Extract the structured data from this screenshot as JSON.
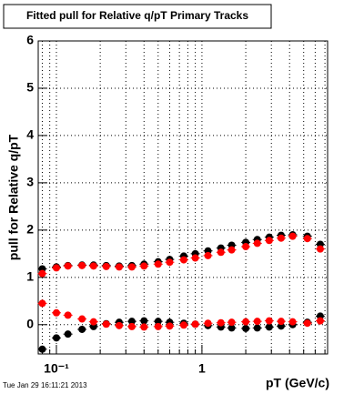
{
  "chart_data": {
    "type": "scatter",
    "title": "Fitted pull for Relative q/pT  Primary Tracks",
    "y_label": "pull for Relative q/pT",
    "x_label": "pT (GeV/c)",
    "timestamp": "Tue Jan 29 16:11:21 2013",
    "log_x": true,
    "grid": true,
    "xlim": [
      0.075,
      7.3
    ],
    "ylim": [
      -0.62,
      6
    ],
    "xticks": [
      {
        "value": 0.1,
        "label": "10⁻¹"
      },
      1
    ],
    "xminor": [
      0.08,
      0.09,
      0.2,
      0.3,
      0.4,
      0.5,
      0.6,
      0.7,
      0.8,
      0.9,
      2,
      3,
      4,
      5,
      6,
      7
    ],
    "yticks": [
      0,
      1,
      2,
      3,
      4,
      5,
      6
    ],
    "series": [
      {
        "color": "#000000",
        "x": [
          0.08,
          0.1,
          0.12,
          0.15,
          0.18,
          0.22,
          0.27,
          0.33,
          0.4,
          0.5,
          0.6,
          0.75,
          0.9,
          1.1,
          1.35,
          1.6,
          2.0,
          2.4,
          2.9,
          3.5,
          4.2,
          5.3,
          6.5
        ],
        "values": [
          1.18,
          1.22,
          1.25,
          1.26,
          1.26,
          1.25,
          1.24,
          1.25,
          1.28,
          1.33,
          1.38,
          1.45,
          1.5,
          1.56,
          1.62,
          1.68,
          1.74,
          1.8,
          1.85,
          1.89,
          1.9,
          1.87,
          1.7
        ]
      },
      {
        "color": "#000000",
        "x": [
          0.08,
          0.1,
          0.12,
          0.15,
          0.18,
          0.22,
          0.27,
          0.33,
          0.4,
          0.5,
          0.6,
          0.75,
          0.9,
          1.1,
          1.35,
          1.6,
          2.0,
          2.4,
          2.9,
          3.5,
          4.2,
          5.3,
          6.5
        ],
        "values": [
          -0.52,
          -0.28,
          -0.2,
          -0.1,
          -0.04,
          0.02,
          0.05,
          0.07,
          0.08,
          0.07,
          0.05,
          0.03,
          0.01,
          -0.02,
          -0.05,
          -0.07,
          -0.08,
          -0.07,
          -0.05,
          -0.03,
          0.0,
          0.05,
          0.18
        ]
      },
      {
        "color": "#ff0000",
        "x": [
          0.08,
          0.1,
          0.12,
          0.15,
          0.18,
          0.22,
          0.27,
          0.33,
          0.4,
          0.5,
          0.6,
          0.75,
          0.9,
          1.1,
          1.35,
          1.6,
          2.0,
          2.4,
          2.9,
          3.5,
          4.2,
          5.3,
          6.5
        ],
        "values": [
          1.08,
          1.2,
          1.24,
          1.25,
          1.24,
          1.23,
          1.22,
          1.22,
          1.24,
          1.28,
          1.32,
          1.37,
          1.41,
          1.46,
          1.53,
          1.58,
          1.65,
          1.72,
          1.78,
          1.83,
          1.87,
          1.82,
          1.6
        ]
      },
      {
        "color": "#ff0000",
        "x": [
          0.08,
          0.1,
          0.12,
          0.15,
          0.18,
          0.22,
          0.27,
          0.33,
          0.4,
          0.5,
          0.6,
          0.75,
          0.9,
          1.1,
          1.35,
          1.6,
          2.0,
          2.4,
          2.9,
          3.5,
          4.2,
          5.3,
          6.5
        ],
        "values": [
          0.45,
          0.25,
          0.2,
          0.12,
          0.06,
          0.01,
          -0.02,
          -0.04,
          -0.05,
          -0.04,
          -0.03,
          -0.01,
          0.01,
          0.03,
          0.04,
          0.05,
          0.06,
          0.07,
          0.08,
          0.07,
          0.06,
          0.03,
          0.08
        ]
      }
    ]
  }
}
